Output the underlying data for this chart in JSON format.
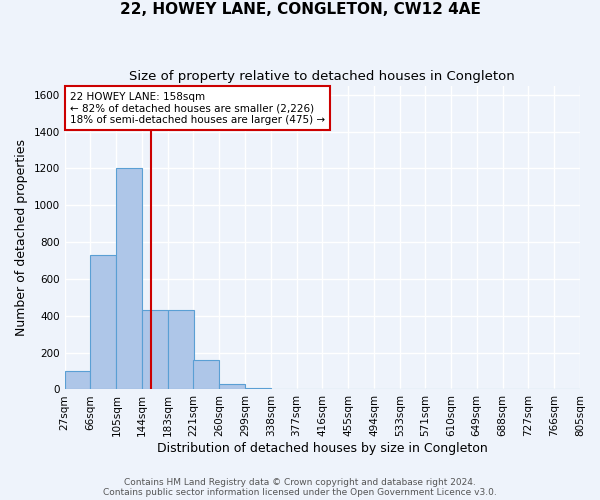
{
  "title": "22, HOWEY LANE, CONGLETON, CW12 4AE",
  "subtitle": "Size of property relative to detached houses in Congleton",
  "xlabel": "Distribution of detached houses by size in Congleton",
  "ylabel": "Number of detached properties",
  "footnote1": "Contains HM Land Registry data © Crown copyright and database right 2024.",
  "footnote2": "Contains public sector information licensed under the Open Government Licence v3.0.",
  "annotation_line1": "22 HOWEY LANE: 158sqm",
  "annotation_line2": "← 82% of detached houses are smaller (2,226)",
  "annotation_line3": "18% of semi-detached houses are larger (475) →",
  "property_size": 158,
  "bar_edges": [
    27,
    66,
    105,
    144,
    183,
    221,
    260,
    299,
    338,
    377,
    416,
    455,
    494,
    533,
    571,
    610,
    649,
    688,
    727,
    766,
    805
  ],
  "bar_heights": [
    100,
    730,
    1200,
    430,
    430,
    160,
    30,
    10,
    0,
    0,
    0,
    0,
    0,
    0,
    0,
    0,
    0,
    0,
    0,
    0
  ],
  "bar_color": "#aec6e8",
  "bar_edge_color": "#5a9fd4",
  "red_line_color": "#cc0000",
  "annotation_box_color": "#ffffff",
  "annotation_box_edge_color": "#cc0000",
  "ylim": [
    0,
    1650
  ],
  "yticks": [
    0,
    200,
    400,
    600,
    800,
    1000,
    1200,
    1400,
    1600
  ],
  "background_color": "#eef3fb",
  "grid_color": "#ffffff",
  "title_fontsize": 11,
  "subtitle_fontsize": 9.5,
  "axis_label_fontsize": 9,
  "tick_fontsize": 7.5,
  "footnote_fontsize": 6.5
}
